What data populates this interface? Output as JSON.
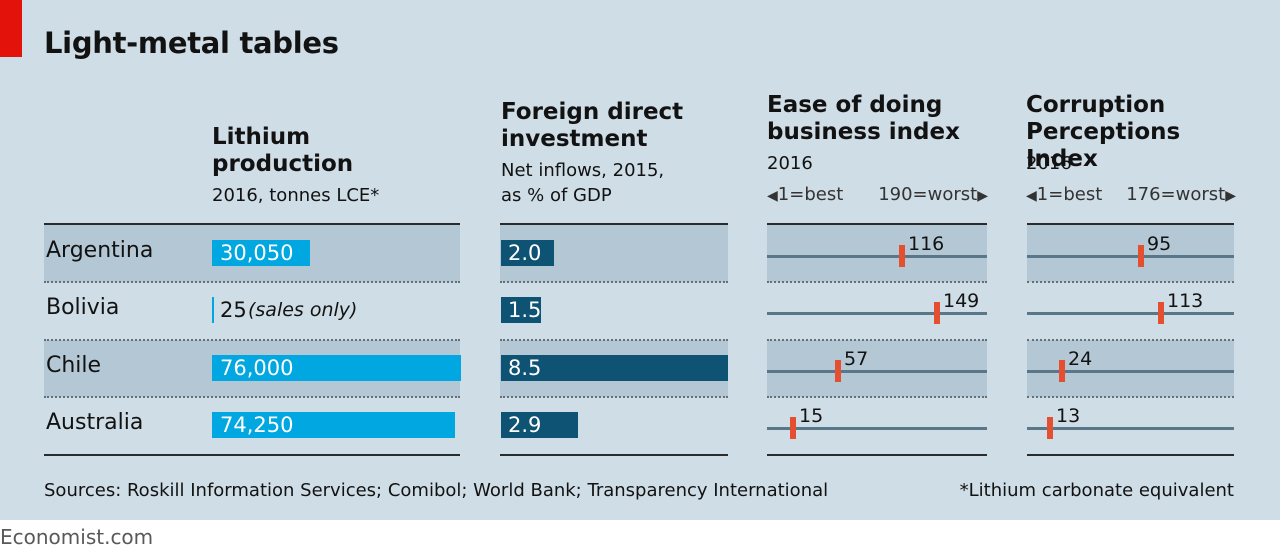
{
  "title": "Light-metal tables",
  "columns": {
    "lithium": {
      "heading": "Lithium production",
      "subtitle_1": "2016, tonnes LCE*"
    },
    "fdi": {
      "heading": "Foreign direct investment",
      "subtitle_1": "Net inflows, 2015,",
      "subtitle_2": "as % of GDP"
    },
    "business": {
      "heading": "Ease of doing business index",
      "subtitle_1": "2016",
      "scale_best": "1=best",
      "scale_worst": "190=worst"
    },
    "corruption": {
      "heading": "Corruption Perceptions Index",
      "subtitle_1": "2016",
      "scale_best": "1=best",
      "scale_worst": "176=worst"
    }
  },
  "chart_data": {
    "type": "bar",
    "title": "Light-metal tables",
    "categories": [
      "Argentina",
      "Bolivia",
      "Chile",
      "Australia"
    ],
    "series": [
      {
        "name": "Lithium production, 2016, tonnes LCE*",
        "values": [
          30050,
          25,
          76000,
          74250
        ],
        "labels": [
          "30,050",
          "25",
          "76,000",
          "74,250"
        ],
        "notes": [
          "",
          "(sales only)",
          "",
          ""
        ],
        "xlim": [
          0,
          76000
        ],
        "color": "#00a7e1"
      },
      {
        "name": "Foreign direct investment, net inflows, 2015, as % of GDP",
        "values": [
          2.0,
          1.5,
          8.5,
          2.9
        ],
        "labels": [
          "2.0",
          "1.5",
          "8.5",
          "2.9"
        ],
        "xlim": [
          0,
          8.5
        ],
        "color": "#0f5374"
      },
      {
        "name": "Ease of doing business index, 2016",
        "values": [
          116,
          149,
          57,
          15
        ],
        "labels": [
          "116",
          "149",
          "57",
          "15"
        ],
        "xlim": [
          1,
          190
        ],
        "best": 1,
        "worst": 190
      },
      {
        "name": "Corruption Perceptions Index, 2016",
        "values": [
          95,
          113,
          24,
          13
        ],
        "labels": [
          "95",
          "113",
          "24",
          "13"
        ],
        "xlim": [
          1,
          176
        ],
        "best": 1,
        "worst": 176
      }
    ]
  },
  "source": "Sources: Roskill Information Services; Comibol; World Bank; Transparency International",
  "footnote": "*Lithium carbonate equivalent",
  "logo": "Economist.com",
  "colors": {
    "background": "#cfdde6",
    "band": "#b3c7d4",
    "accent_red": "#e3120b",
    "lithium_bar": "#00a7e1",
    "fdi_bar": "#0f5374",
    "marker": "#e4502f",
    "scale_line": "#5a7789"
  }
}
